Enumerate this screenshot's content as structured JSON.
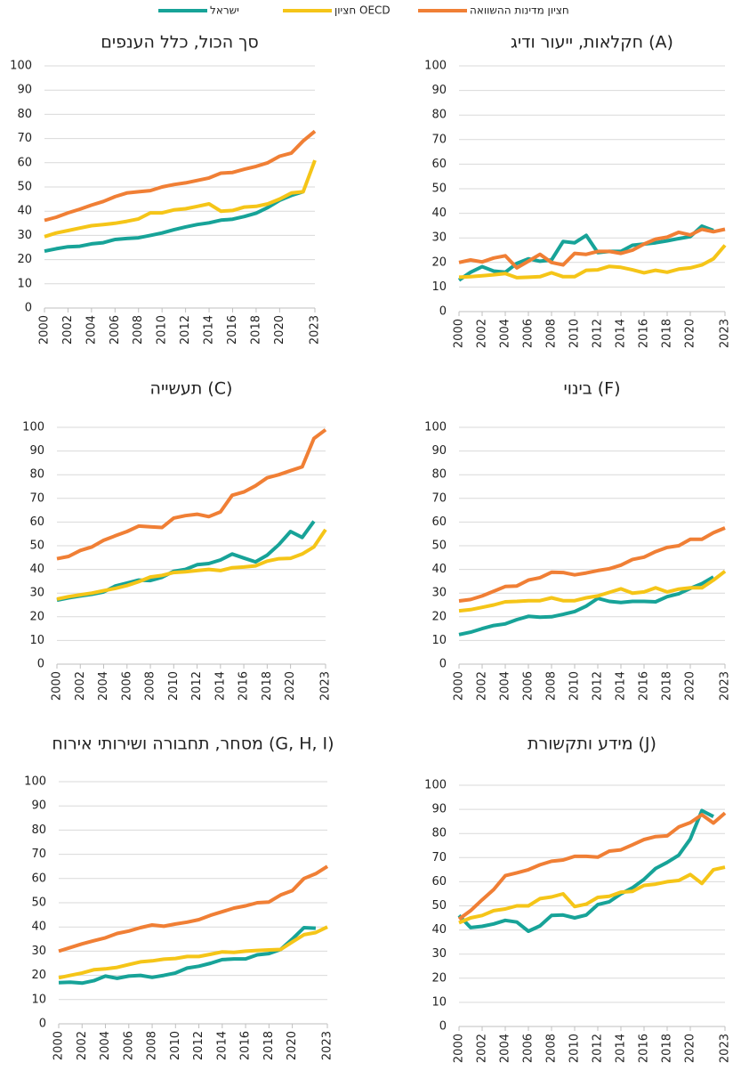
{
  "legend": [
    {
      "name": "ישראל",
      "color": "#17a398"
    },
    {
      "name": "חציון OECD",
      "color": "#f5c518"
    },
    {
      "name": "חציון מדינות ההשוואה",
      "color": "#f07f35"
    }
  ],
  "chart_data": [
    {
      "type": "line",
      "title": "סך הכול, כלל הענפים",
      "x": [
        2000,
        2001,
        2002,
        2003,
        2004,
        2005,
        2006,
        2007,
        2008,
        2009,
        2010,
        2011,
        2012,
        2013,
        2014,
        2015,
        2016,
        2017,
        2018,
        2019,
        2020,
        2021,
        2022,
        2023
      ],
      "xlim": [
        2000,
        2023
      ],
      "xticks": [
        2000,
        2002,
        2004,
        2006,
        2008,
        2010,
        2012,
        2014,
        2016,
        2018,
        2020,
        2023
      ],
      "ylim": [
        0,
        100
      ],
      "yticks": [
        0,
        10,
        20,
        30,
        40,
        50,
        60,
        70,
        80,
        90,
        100
      ],
      "grid": true,
      "series": [
        {
          "values": [
            23.5,
            24.5,
            25.3,
            25.5,
            26.5,
            27,
            28.3,
            28.7,
            29,
            30,
            31,
            32.3,
            33.5,
            34.5,
            35.2,
            36.3,
            36.7,
            37.8,
            39.2,
            41.5,
            44.5,
            46.5,
            48,
            null
          ]
        },
        {
          "values": [
            29.5,
            31,
            32,
            33,
            34,
            34.5,
            35,
            35.8,
            36.8,
            39.3,
            39.3,
            40.5,
            41,
            42,
            43,
            40,
            40.3,
            41.7,
            42,
            43,
            45,
            47.5,
            48,
            61
          ]
        },
        {
          "values": [
            36.2,
            37.5,
            39.3,
            40.8,
            42.5,
            44,
            46,
            47.5,
            48,
            48.5,
            50,
            51,
            51.7,
            52.7,
            53.7,
            55.7,
            56,
            57.3,
            58.5,
            60,
            62.7,
            64,
            69,
            73
          ]
        }
      ]
    },
    {
      "type": "line",
      "title": "חקלאות, ייעור ודיג (A)",
      "x": [
        2000,
        2001,
        2002,
        2003,
        2004,
        2005,
        2006,
        2007,
        2008,
        2009,
        2010,
        2011,
        2012,
        2013,
        2014,
        2015,
        2016,
        2017,
        2018,
        2019,
        2020,
        2021,
        2022,
        2023
      ],
      "xlim": [
        2000,
        2023
      ],
      "xticks": [
        2000,
        2002,
        2004,
        2006,
        2008,
        2010,
        2012,
        2014,
        2016,
        2018,
        2020,
        2023
      ],
      "ylim": [
        0,
        100
      ],
      "yticks": [
        0,
        10,
        20,
        30,
        40,
        50,
        60,
        70,
        80,
        90,
        100
      ],
      "grid": true,
      "series": [
        {
          "values": [
            12.8,
            16,
            18.3,
            16.5,
            16,
            19.6,
            21.5,
            20.5,
            21,
            28.5,
            28,
            31,
            24,
            24.5,
            24.5,
            27,
            27.5,
            28,
            28.8,
            29.7,
            30.5,
            34.8,
            33,
            null
          ]
        },
        {
          "values": [
            14,
            14.2,
            14.6,
            15,
            15.5,
            13.8,
            14,
            14.2,
            15.8,
            14.2,
            14.2,
            16.8,
            17,
            18.4,
            18,
            17,
            15.8,
            16.8,
            16,
            17.3,
            17.8,
            19,
            21.5,
            27
          ]
        },
        {
          "values": [
            20,
            21,
            20.2,
            21.8,
            22.7,
            17.8,
            20.5,
            23.3,
            20,
            19,
            23.7,
            23.3,
            24.5,
            24.5,
            23.7,
            25,
            27.5,
            29.5,
            30.3,
            32.3,
            31.2,
            33.5,
            32.5,
            33.5
          ]
        }
      ]
    },
    {
      "type": "line",
      "title": "תעשייה (C)",
      "x": [
        2000,
        2001,
        2002,
        2003,
        2004,
        2005,
        2006,
        2007,
        2008,
        2009,
        2010,
        2011,
        2012,
        2013,
        2014,
        2015,
        2016,
        2017,
        2018,
        2019,
        2020,
        2021,
        2022,
        2023
      ],
      "xlim": [
        2000,
        2023
      ],
      "xticks": [
        2000,
        2002,
        2004,
        2006,
        2008,
        2010,
        2012,
        2014,
        2016,
        2018,
        2020,
        2023
      ],
      "ylim": [
        0,
        100
      ],
      "yticks": [
        0,
        10,
        20,
        30,
        40,
        50,
        60,
        70,
        80,
        90,
        100
      ],
      "grid": true,
      "series": [
        {
          "values": [
            27,
            28,
            28.8,
            29.5,
            30.5,
            33,
            34.2,
            35.5,
            35.3,
            36.7,
            39.2,
            40,
            42,
            42.5,
            44,
            46.5,
            44.8,
            43.2,
            46,
            50.5,
            56,
            53.5,
            60.3,
            null
          ]
        },
        {
          "values": [
            27.5,
            28.5,
            29.3,
            30,
            31,
            32,
            33.2,
            34.8,
            36.8,
            37.5,
            38.7,
            39,
            39.5,
            40,
            39.5,
            40.7,
            41,
            41.5,
            43.5,
            44.5,
            44.7,
            46.5,
            49.5,
            56.8
          ]
        },
        {
          "values": [
            44.5,
            45.5,
            48,
            49.5,
            52.3,
            54.2,
            56,
            58.3,
            58,
            57.7,
            61.7,
            62.7,
            63.3,
            62.3,
            64.3,
            71.3,
            72.7,
            75.3,
            78.7,
            80,
            81.7,
            83.3,
            95.3,
            99
          ]
        }
      ]
    },
    {
      "type": "line",
      "title": "בינוי (F)",
      "x": [
        2000,
        2001,
        2002,
        2003,
        2004,
        2005,
        2006,
        2007,
        2008,
        2009,
        2010,
        2011,
        2012,
        2013,
        2014,
        2015,
        2016,
        2017,
        2018,
        2019,
        2020,
        2021,
        2022,
        2023
      ],
      "xlim": [
        2000,
        2023
      ],
      "xticks": [
        2000,
        2002,
        2004,
        2006,
        2008,
        2010,
        2012,
        2014,
        2016,
        2018,
        2020,
        2023
      ],
      "ylim": [
        0,
        100
      ],
      "yticks": [
        0,
        10,
        20,
        30,
        40,
        50,
        60,
        70,
        80,
        90,
        100
      ],
      "grid": true,
      "series": [
        {
          "values": [
            12.5,
            13.5,
            15,
            16.3,
            17,
            18.8,
            20.2,
            19.8,
            20,
            21,
            22.2,
            24.5,
            27.8,
            26.5,
            26,
            26.5,
            26.5,
            26.3,
            28.5,
            29.7,
            32,
            34,
            36.8,
            null
          ]
        },
        {
          "values": [
            22.5,
            23,
            24,
            25,
            26.3,
            26.5,
            26.8,
            26.8,
            28,
            26.8,
            26.8,
            28,
            28.8,
            30.3,
            31.8,
            30,
            30.5,
            32.2,
            30.5,
            31.7,
            32.2,
            32.2,
            35.5,
            39.2
          ]
        },
        {
          "values": [
            26.7,
            27.3,
            28.8,
            30.8,
            32.8,
            33,
            35.5,
            36.5,
            38.8,
            38.7,
            37.7,
            38.5,
            39.5,
            40.3,
            41.8,
            44.2,
            45.2,
            47.5,
            49.3,
            50,
            52.7,
            52.7,
            55.5,
            57.5
          ]
        }
      ]
    },
    {
      "type": "line",
      "title": "מסחר, תחבורה ושירותי אירוח (G, H, I)",
      "x": [
        2000,
        2001,
        2002,
        2003,
        2004,
        2005,
        2006,
        2007,
        2008,
        2009,
        2010,
        2011,
        2012,
        2013,
        2014,
        2015,
        2016,
        2017,
        2018,
        2019,
        2020,
        2021,
        2022,
        2023
      ],
      "xlim": [
        2000,
        2023
      ],
      "xticks": [
        2000,
        2002,
        2004,
        2006,
        2008,
        2010,
        2012,
        2014,
        2016,
        2018,
        2020,
        2023
      ],
      "ylim": [
        0,
        100
      ],
      "yticks": [
        0,
        10,
        20,
        30,
        40,
        50,
        60,
        70,
        80,
        90,
        100
      ],
      "grid": true,
      "series": [
        {
          "values": [
            17,
            17.2,
            16.8,
            17.8,
            19.7,
            18.8,
            19.7,
            20,
            19.2,
            20,
            21,
            23,
            23.8,
            25,
            26.5,
            26.8,
            26.8,
            28.5,
            29,
            30.7,
            35,
            39.7,
            39.5,
            null
          ]
        },
        {
          "values": [
            19,
            20,
            21,
            22.3,
            22.7,
            23.3,
            24.5,
            25.6,
            26,
            26.7,
            27,
            27.8,
            27.8,
            28.7,
            29.7,
            29.5,
            30,
            30.3,
            30.5,
            30.7,
            33.8,
            36.8,
            37.7,
            40
          ]
        },
        {
          "values": [
            30,
            31.5,
            33,
            34.3,
            35.5,
            37.3,
            38.3,
            39.7,
            40.8,
            40.3,
            41.2,
            42,
            43,
            44.8,
            46.3,
            47.8,
            48.7,
            50,
            50.3,
            53.2,
            55,
            60,
            62,
            65
          ]
        }
      ]
    },
    {
      "type": "line",
      "title": "מידע ותקשורת (J)",
      "x": [
        2000,
        2001,
        2002,
        2003,
        2004,
        2005,
        2006,
        2007,
        2008,
        2009,
        2010,
        2011,
        2012,
        2013,
        2014,
        2015,
        2016,
        2017,
        2018,
        2019,
        2020,
        2021,
        2022,
        2023
      ],
      "xlim": [
        2000,
        2023
      ],
      "xticks": [
        2000,
        2002,
        2004,
        2006,
        2008,
        2010,
        2012,
        2014,
        2016,
        2018,
        2020,
        2023
      ],
      "ylim": [
        0,
        100
      ],
      "yticks": [
        0,
        10,
        20,
        30,
        40,
        50,
        60,
        70,
        80,
        90,
        100
      ],
      "grid": true,
      "series": [
        {
          "values": [
            46,
            41,
            41.5,
            42.5,
            44,
            43.3,
            39.5,
            41.7,
            46,
            46.2,
            45,
            46.2,
            50.5,
            51.7,
            55,
            57.5,
            61,
            65.5,
            68,
            71,
            77.7,
            89.5,
            87,
            null
          ]
        },
        {
          "values": [
            43,
            45,
            46,
            48,
            48.7,
            50,
            50,
            53,
            53.7,
            55,
            49.7,
            50.7,
            53.5,
            54,
            55.7,
            56,
            58.5,
            59,
            60,
            60.5,
            63,
            59.3,
            65,
            66
          ]
        },
        {
          "values": [
            44.5,
            48,
            52.5,
            56.8,
            62.5,
            63.7,
            65,
            67,
            68.5,
            69,
            70.5,
            70.5,
            70.2,
            72.7,
            73.2,
            75.3,
            77.5,
            78.7,
            79,
            82.7,
            84.5,
            87.8,
            84.3,
            88.5
          ]
        }
      ]
    }
  ]
}
